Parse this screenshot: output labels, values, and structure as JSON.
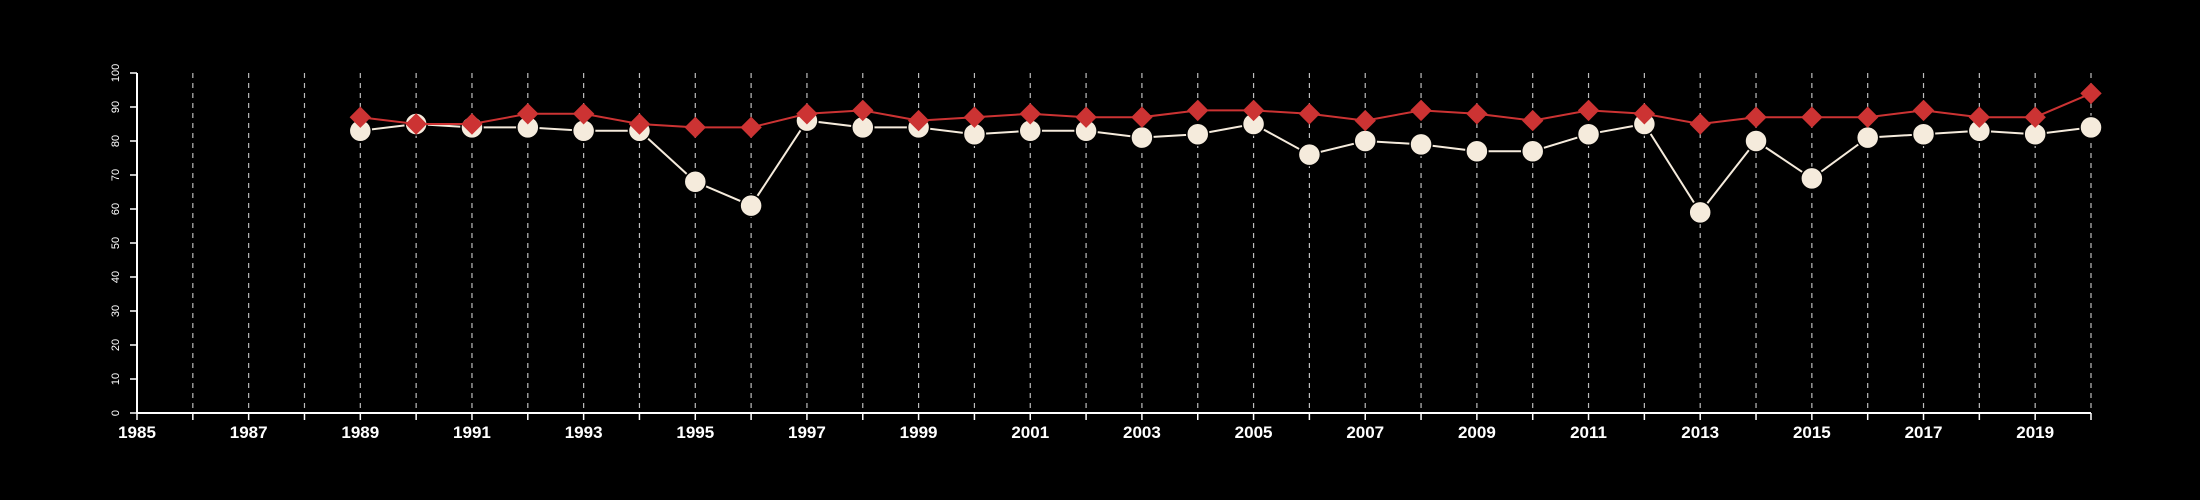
{
  "chart_data": {
    "type": "line",
    "title": "",
    "xlabel": "",
    "ylabel": "",
    "xlim": [
      1985,
      2020
    ],
    "ylim": [
      0,
      100
    ],
    "x_tick_labels": [
      "1985",
      "1987",
      "1989",
      "1991",
      "1993",
      "1995",
      "1997",
      "1999",
      "2001",
      "2003",
      "2005",
      "2007",
      "2009",
      "2011",
      "2013",
      "2015",
      "2017",
      "2019"
    ],
    "y_tick_labels": [
      "0",
      "10",
      "20",
      "30",
      "40",
      "50",
      "60",
      "70",
      "80",
      "90",
      "100"
    ],
    "grid": "vertical dashed lines at every year",
    "x": [
      1989,
      1990,
      1991,
      1992,
      1993,
      1994,
      1995,
      1996,
      1997,
      1998,
      1999,
      2000,
      2001,
      2002,
      2003,
      2004,
      2005,
      2006,
      2007,
      2008,
      2009,
      2010,
      2011,
      2012,
      2013,
      2014,
      2015,
      2016,
      2017,
      2018,
      2019,
      2020
    ],
    "series": [
      {
        "color": "#cc3333",
        "marker": "diamond",
        "values": [
          87,
          85,
          85,
          88,
          88,
          85,
          84,
          84,
          88,
          89,
          86,
          87,
          88,
          87,
          87,
          89,
          89,
          88,
          86,
          89,
          88,
          86,
          89,
          88,
          85,
          87,
          87,
          87,
          89,
          87,
          87,
          94
        ]
      },
      {
        "color": "#f5ebdc",
        "marker": "circle",
        "values": [
          83,
          85,
          84,
          84,
          83,
          83,
          68,
          61,
          86,
          84,
          84,
          82,
          83,
          83,
          81,
          82,
          85,
          76,
          80,
          79,
          77,
          77,
          82,
          85,
          59,
          80,
          69,
          81,
          82,
          83,
          82,
          84
        ]
      }
    ]
  }
}
